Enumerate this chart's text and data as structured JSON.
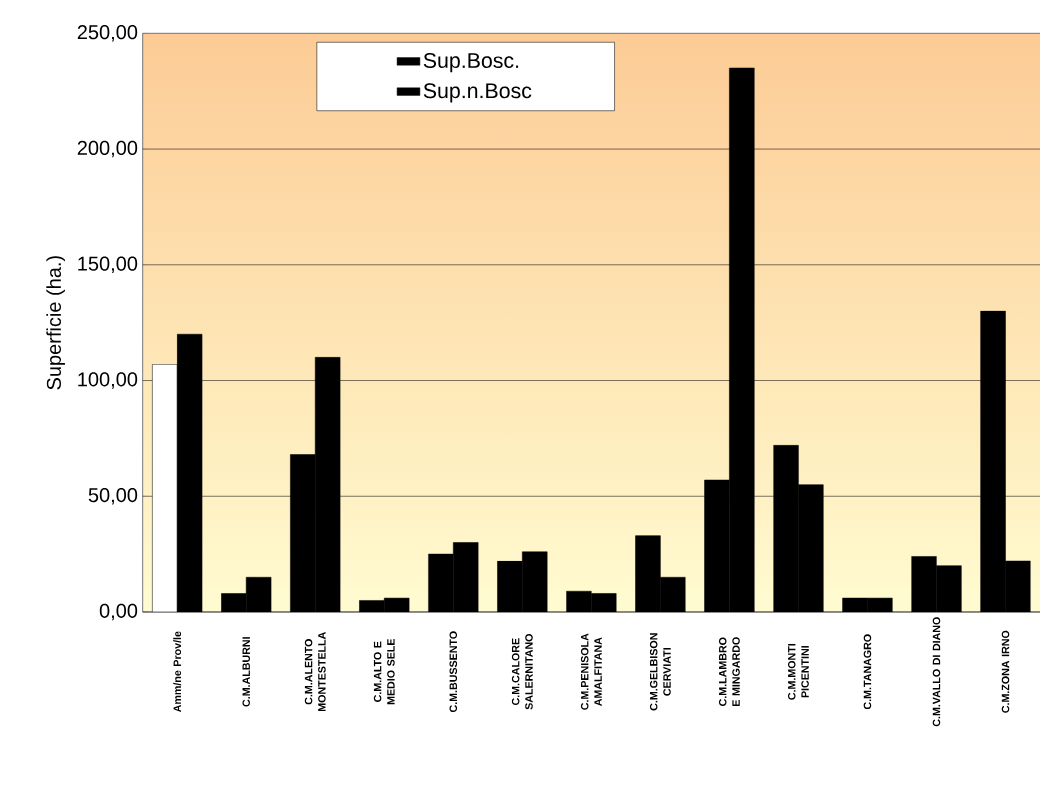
{
  "chart_data": {
    "type": "bar",
    "ylabel": "Superficie  (ha.)",
    "categories": [
      "Amm/ne Prov/le",
      "C.M.ALBURNI",
      "C.M.ALENTO MONTESTELLA",
      "C.M.ALTO E MEDIO SELE",
      "C.M.BUSSENTO",
      "C.M.CALORE SALERNITANO",
      "C.M.PENISOLA AMALFITANA",
      "C.M.GELBISON CERVIATI",
      "C.M.LAMBRO E MINGARDO",
      "C.M.MONTI PICENTINI",
      "C.M.TANAGRO",
      "C.M.VALLO DI DIANO",
      "C.M.ZONA IRNO"
    ],
    "series": [
      {
        "name": "Sup.Bosc.",
        "color": "#000000",
        "colors": [
          "#ffffff",
          "#000000",
          "#000000",
          "#000000",
          "#000000",
          "#000000",
          "#000000",
          "#000000",
          "#000000",
          "#000000",
          "#000000",
          "#000000",
          "#000000"
        ],
        "values": [
          107,
          8,
          68,
          5,
          25,
          22,
          9,
          33,
          57,
          72,
          6,
          24,
          130
        ]
      },
      {
        "name": "Sup.n.Bosc",
        "color": "#000000",
        "values": [
          120,
          15,
          110,
          6,
          30,
          26,
          8,
          15,
          235,
          55,
          6,
          20,
          22
        ]
      }
    ],
    "ylim": [
      0,
      250
    ],
    "yticks": [
      {
        "value": 0,
        "label": "0,00"
      },
      {
        "value": 50,
        "label": "50,00"
      },
      {
        "value": 100,
        "label": "100,00"
      },
      {
        "value": 150,
        "label": "150,00"
      },
      {
        "value": 200,
        "label": "200,00"
      },
      {
        "value": 250,
        "label": "250,00"
      }
    ],
    "grid": "y",
    "legend": "top"
  }
}
